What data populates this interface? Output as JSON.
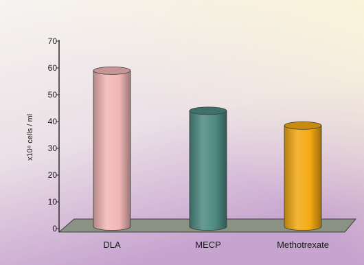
{
  "chart_data": {
    "type": "bar",
    "style": "3d-cylinder",
    "categories": [
      "DLA",
      "MECP",
      "Methotrexate"
    ],
    "values": [
      59,
      44,
      38.5
    ],
    "ylabel": "x10⁶ cells / ml",
    "ylim": [
      0,
      70
    ],
    "yticks": [
      0,
      10,
      20,
      30,
      40,
      50,
      60,
      70
    ],
    "tick_labels": [
      "0",
      "10",
      "20",
      "30",
      "40",
      "50",
      "60",
      "70"
    ],
    "grid": false,
    "legend": "none",
    "colors": {
      "DLA": "#f2b6b6",
      "MECP": "#4d8a82",
      "Methotrexate": "#f3a912",
      "floor": "#8a9284",
      "background_top": "#f6f2f3",
      "background_bottom": "#c9a6d2"
    }
  }
}
